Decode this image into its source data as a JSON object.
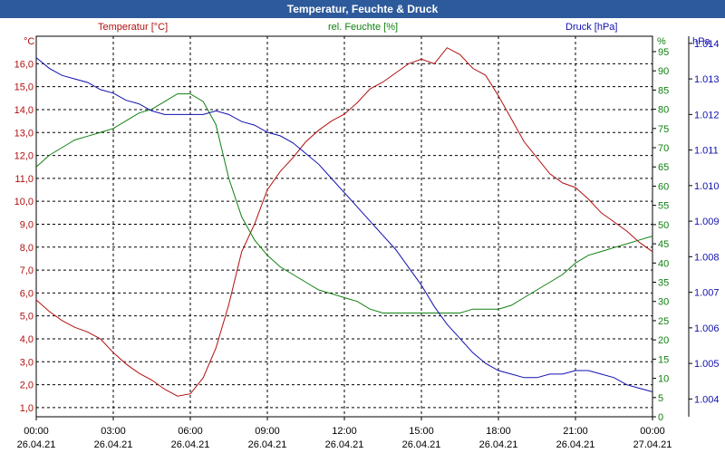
{
  "title": "Temperatur, Feuchte & Druck",
  "legend": {
    "temperature": "Temperatur [°C]",
    "humidity": "rel. Feuchte [%]",
    "pressure": "Druck [hPa]"
  },
  "units": {
    "left": "°C",
    "right1": "%",
    "right2": "hPa"
  },
  "colors": {
    "temperature": "#b01010",
    "humidity": "#108010",
    "pressure": "#1010b0",
    "titlebar": "#2d5a9b"
  },
  "chart_data": {
    "type": "line",
    "title": "Temperatur, Feuchte & Druck",
    "x_ticks": [
      {
        "time": "00:00",
        "date": "26.04.21"
      },
      {
        "time": "03:00",
        "date": "26.04.21"
      },
      {
        "time": "06:00",
        "date": "26.04.21"
      },
      {
        "time": "09:00",
        "date": "26.04.21"
      },
      {
        "time": "12:00",
        "date": "26.04.21"
      },
      {
        "time": "15:00",
        "date": "26.04.21"
      },
      {
        "time": "18:00",
        "date": "26.04.21"
      },
      {
        "time": "21:00",
        "date": "26.04.21"
      },
      {
        "time": "00:00",
        "date": "27.04.21"
      }
    ],
    "xlim_hours": [
      0,
      24
    ],
    "y_axes": {
      "temperature": {
        "label": "°C",
        "lim": [
          0.6,
          17.2
        ],
        "ticks": [
          "1,0",
          "2,0",
          "3,0",
          "4,0",
          "5,0",
          "6,0",
          "7,0",
          "8,0",
          "9,0",
          "10,0",
          "11,0",
          "12,0",
          "13,0",
          "14,0",
          "15,0",
          "16,0"
        ]
      },
      "humidity": {
        "label": "%",
        "lim": [
          0,
          99
        ],
        "ticks": [
          "0",
          "5",
          "10",
          "15",
          "20",
          "25",
          "30",
          "35",
          "40",
          "45",
          "50",
          "55",
          "60",
          "65",
          "70",
          "75",
          "80",
          "85",
          "90",
          "95"
        ]
      },
      "pressure": {
        "label": "hPa",
        "lim": [
          1.0035,
          1.0142
        ],
        "ticks": [
          "1.004",
          "1.005",
          "1.006",
          "1.007",
          "1.008",
          "1.009",
          "1.010",
          "1.011",
          "1.012",
          "1.013",
          "1.014"
        ]
      }
    },
    "series": [
      {
        "name": "Temperatur [°C]",
        "axis": "temperature",
        "x": [
          0,
          0.5,
          1,
          1.5,
          2,
          2.5,
          3,
          3.5,
          4,
          4.5,
          5,
          5.5,
          6,
          6.5,
          7,
          7.5,
          8,
          8.5,
          9,
          9.5,
          10,
          10.5,
          11,
          11.5,
          12,
          12.5,
          13,
          13.5,
          14,
          14.5,
          15,
          15.5,
          16,
          16.5,
          17,
          17.5,
          18,
          18.5,
          19,
          19.5,
          20,
          20.5,
          21,
          21.5,
          22,
          22.5,
          23,
          23.5,
          24
        ],
        "values": [
          5.7,
          5.2,
          4.8,
          4.5,
          4.3,
          4.0,
          3.4,
          2.9,
          2.5,
          2.2,
          1.8,
          1.5,
          1.6,
          2.3,
          3.6,
          5.5,
          7.8,
          9.0,
          10.5,
          11.3,
          11.9,
          12.6,
          13.1,
          13.5,
          13.8,
          14.3,
          14.9,
          15.2,
          15.6,
          16.0,
          16.2,
          16.0,
          16.7,
          16.4,
          15.8,
          15.5,
          14.6,
          13.6,
          12.6,
          11.9,
          11.2,
          10.8,
          10.6,
          10.1,
          9.5,
          9.1,
          8.7,
          8.2,
          7.8
        ]
      },
      {
        "name": "rel. Feuchte [%]",
        "axis": "humidity",
        "x": [
          0,
          0.5,
          1,
          1.5,
          2,
          2.5,
          3,
          3.5,
          4,
          4.5,
          5,
          5.5,
          6,
          6.5,
          7,
          7.5,
          8,
          8.5,
          9,
          9.5,
          10,
          10.5,
          11,
          11.5,
          12,
          12.5,
          13,
          13.5,
          14,
          14.5,
          15,
          15.5,
          16,
          16.5,
          17,
          17.5,
          18,
          18.5,
          19,
          19.5,
          20,
          20.5,
          21,
          21.5,
          22,
          22.5,
          23,
          23.5,
          24
        ],
        "values": [
          65,
          68,
          70,
          72,
          73,
          74,
          75,
          77,
          79,
          80,
          82,
          84,
          84,
          82,
          76,
          62,
          52,
          46,
          42,
          39,
          37,
          35,
          33,
          32,
          31,
          30,
          28,
          27,
          27,
          27,
          27,
          27,
          27,
          27,
          28,
          28,
          28,
          29,
          31,
          33,
          35,
          37,
          40,
          42,
          43,
          44,
          45,
          46,
          47
        ]
      },
      {
        "name": "Druck [hPa]",
        "axis": "pressure",
        "x": [
          0,
          0.5,
          1,
          1.5,
          2,
          2.5,
          3,
          3.5,
          4,
          4.5,
          5,
          5.5,
          6,
          6.5,
          7,
          7.5,
          8,
          8.5,
          9,
          9.5,
          10,
          10.5,
          11,
          11.5,
          12,
          12.5,
          13,
          13.5,
          14,
          14.5,
          15,
          15.5,
          16,
          16.5,
          17,
          17.5,
          18,
          18.5,
          19,
          19.5,
          20,
          20.5,
          21,
          21.5,
          22,
          22.5,
          23,
          23.5,
          24
        ],
        "values": [
          1.0136,
          1.0133,
          1.0131,
          1.013,
          1.0129,
          1.0127,
          1.0126,
          1.0124,
          1.0123,
          1.0121,
          1.012,
          1.012,
          1.012,
          1.012,
          1.0121,
          1.012,
          1.0118,
          1.0117,
          1.0115,
          1.0114,
          1.0112,
          1.0109,
          1.0106,
          1.0102,
          1.0098,
          1.0094,
          1.009,
          1.0086,
          1.0082,
          1.0077,
          1.0072,
          1.0066,
          1.0061,
          1.0057,
          1.0053,
          1.005,
          1.0048,
          1.0047,
          1.0046,
          1.0046,
          1.0047,
          1.0047,
          1.0048,
          1.0048,
          1.0047,
          1.0046,
          1.0044,
          1.0043,
          1.0042
        ]
      }
    ]
  }
}
